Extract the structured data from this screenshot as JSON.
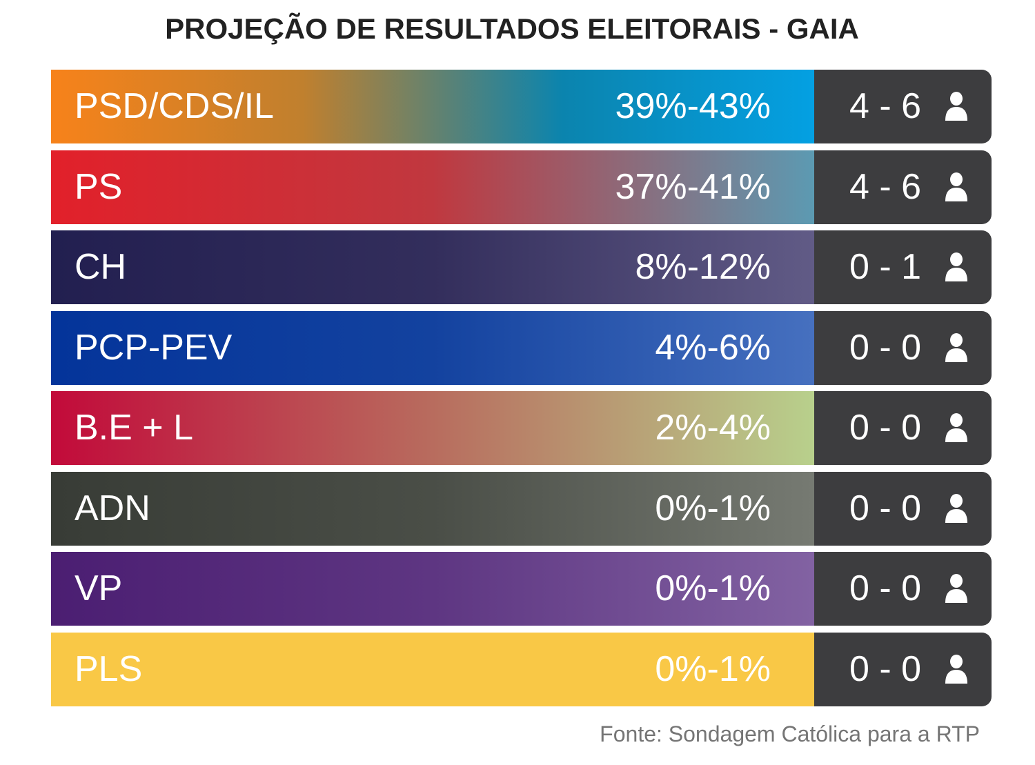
{
  "chart_data": {
    "type": "table",
    "title": "PROJEÇÃO DE RESULTADOS ELEITORAIS - GAIA",
    "columns": [
      "party",
      "vote_range",
      "seats_range"
    ],
    "rows": [
      {
        "party": "PSD/CDS/IL",
        "vote_range": "39%-43%",
        "seats": "4 - 6",
        "vote_min": 39,
        "vote_max": 43,
        "seats_min": 4,
        "seats_max": 6,
        "gradient": [
          "#f7821a",
          "#c0802e",
          "#0b84ae",
          "#04a0e2"
        ]
      },
      {
        "party": "PS",
        "vote_range": "37%-41%",
        "seats": "4 - 6",
        "vote_min": 37,
        "vote_max": 41,
        "seats_min": 4,
        "seats_max": 6,
        "gradient": [
          "#e2202a",
          "#c0383f",
          "#5c9ab2"
        ]
      },
      {
        "party": "CH",
        "vote_range": "8%-12%",
        "seats": "0 - 1",
        "vote_min": 8,
        "vote_max": 12,
        "seats_min": 0,
        "seats_max": 1,
        "gradient": [
          "#221f50",
          "#332e5c",
          "#615b86"
        ]
      },
      {
        "party": "PCP-PEV",
        "vote_range": "4%-6%",
        "seats": "0 - 0",
        "vote_min": 4,
        "vote_max": 6,
        "seats_min": 0,
        "seats_max": 0,
        "gradient": [
          "#04349a",
          "#13429f",
          "#4670bf"
        ]
      },
      {
        "party": "B.E + L",
        "vote_range": "2%-4%",
        "seats": "0 - 0",
        "vote_min": 2,
        "vote_max": 4,
        "seats_min": 0,
        "seats_max": 0,
        "gradient": [
          "#c20a3a",
          "#b86c5e",
          "#b8d08c"
        ]
      },
      {
        "party": "ADN",
        "vote_range": "0%-1%",
        "seats": "0 - 0",
        "vote_min": 0,
        "vote_max": 1,
        "seats_min": 0,
        "seats_max": 0,
        "gradient": [
          "#383c36",
          "#4a4e47",
          "#767a72"
        ]
      },
      {
        "party": "VP",
        "vote_range": "0%-1%",
        "seats": "0 - 0",
        "vote_min": 0,
        "vote_max": 1,
        "seats_min": 0,
        "seats_max": 0,
        "gradient": [
          "#4b1e72",
          "#5e3682",
          "#8262a2"
        ]
      },
      {
        "party": "PLS",
        "vote_range": "0%-1%",
        "seats": "0 - 0",
        "vote_min": 0,
        "vote_max": 1,
        "seats_min": 0,
        "seats_max": 0,
        "gradient": [
          "#f9c846",
          "#f9c846"
        ]
      }
    ],
    "seat_icon": "person-icon",
    "seat_box_color": "#3d3d3f"
  },
  "source": "Fonte: Sondagem Católica para a RTP"
}
